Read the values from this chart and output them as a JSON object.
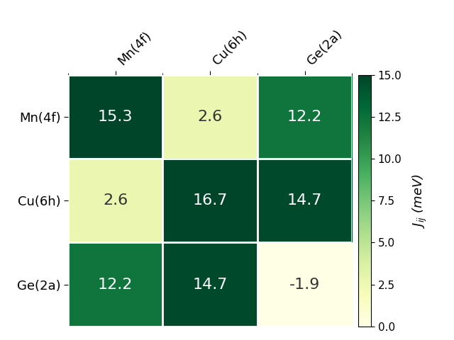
{
  "labels": [
    "Mn(4f)",
    "Cu(6h)",
    "Ge(2a)"
  ],
  "matrix": [
    [
      15.3,
      2.6,
      12.2
    ],
    [
      2.6,
      16.7,
      14.7
    ],
    [
      12.2,
      14.7,
      -1.9
    ]
  ],
  "vmin": 0.0,
  "vmax": 15.0,
  "colorbar_label": "$J_{ij}$ (meV)",
  "cell_text_fontsize": 16,
  "tick_fontsize": 13,
  "colorbar_tick_fontsize": 11,
  "colorbar_ticks": [
    0.0,
    2.5,
    5.0,
    7.5,
    10.0,
    12.5,
    15.0
  ],
  "text_threshold": 0.42
}
